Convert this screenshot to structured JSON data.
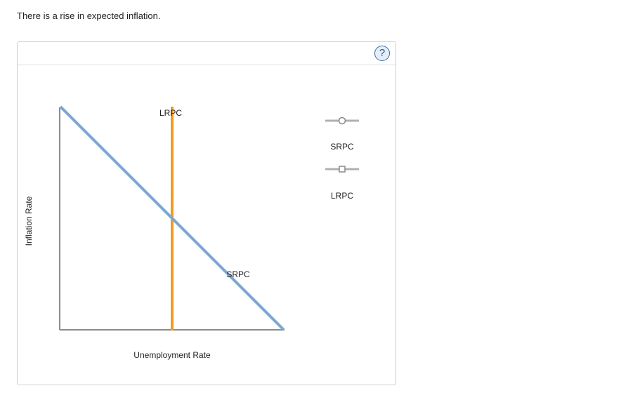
{
  "prompt": "There is a rise in expected inflation.",
  "help_button": "?",
  "graph": {
    "y_axis_label": "Inflation Rate",
    "x_axis_label": "Unemployment Rate",
    "curves": {
      "srpc": {
        "label": "SRPC",
        "color": "#7ba7d6"
      },
      "lrpc": {
        "label": "LRPC",
        "color": "#f39a1f"
      }
    }
  },
  "legend": {
    "tools": [
      {
        "label": "SRPC",
        "marker": "circle-icon"
      },
      {
        "label": "LRPC",
        "marker": "square-icon"
      }
    ]
  }
}
